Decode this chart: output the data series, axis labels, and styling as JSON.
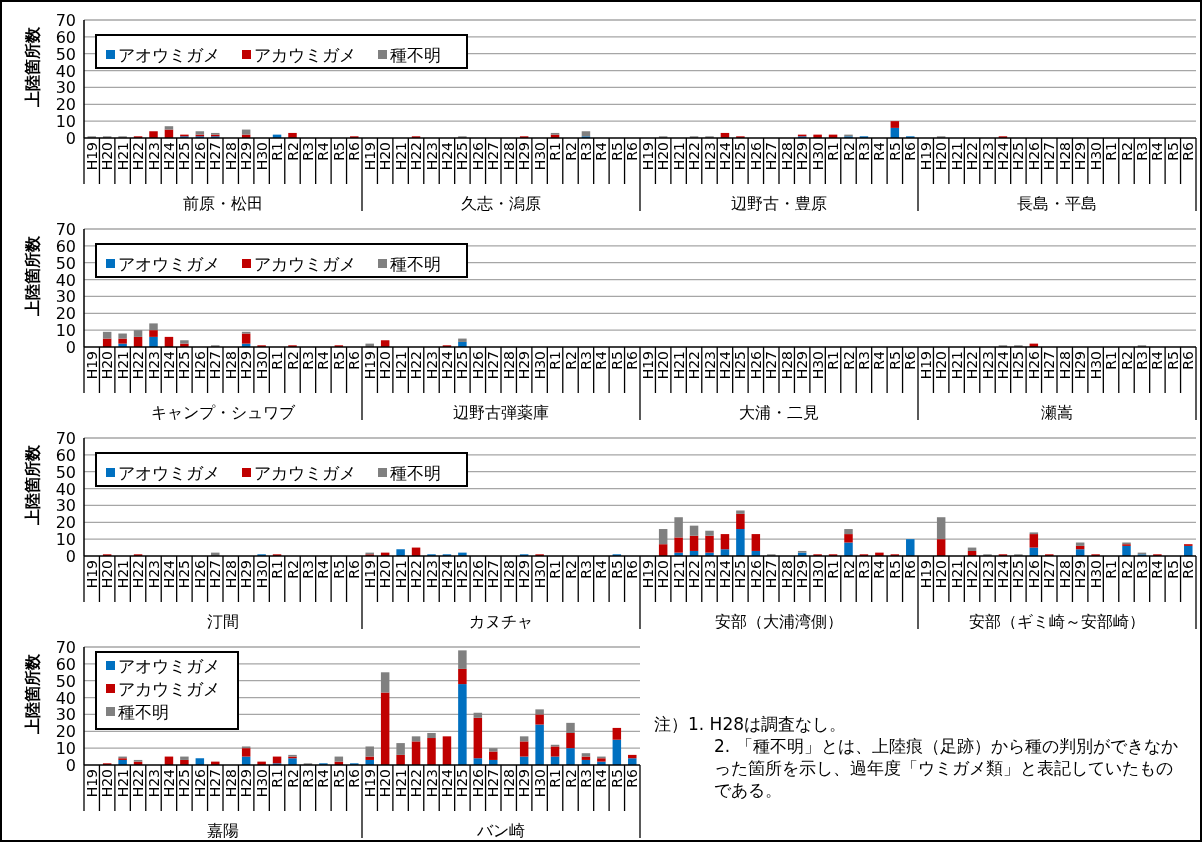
{
  "chart_data": [
    {
      "type": "bar",
      "stacked": true,
      "ylabel": "上陸箇所数",
      "ylim": [
        0,
        70
      ],
      "yticks": [
        0,
        10,
        20,
        30,
        40,
        50,
        60,
        70
      ],
      "grid": "y",
      "legend": "top left",
      "categories": [
        "H19",
        "H20",
        "H21",
        "H22",
        "H23",
        "H24",
        "H25",
        "H26",
        "H27",
        "H28",
        "H29",
        "H30",
        "R1",
        "R2",
        "R3",
        "R4",
        "R5",
        "R6",
        "H19",
        "H20",
        "H21",
        "H22",
        "H23",
        "H24",
        "H25",
        "H26",
        "H27",
        "H28",
        "H29",
        "H30",
        "R1",
        "R2",
        "R3",
        "R4",
        "R5",
        "R6",
        "H19",
        "H20",
        "H21",
        "H22",
        "H23",
        "H24",
        "H25",
        "H26",
        "H27",
        "H28",
        "H29",
        "H30",
        "R1",
        "R2",
        "R3",
        "R4",
        "R5",
        "R6",
        "H19",
        "H20",
        "H21",
        "H22",
        "H23",
        "H24",
        "H25",
        "H26",
        "H27",
        "H28",
        "H29",
        "H30",
        "R1",
        "R2",
        "R3",
        "R4",
        "R5",
        "R6"
      ],
      "annotations": [
        "前原・松田",
        "久志・潟原",
        "辺野古・豊原",
        "長島・平島"
      ],
      "series": [
        {
          "name": "アオウミガメ",
          "color": "#0070c0",
          "values": [
            0,
            0,
            0,
            0,
            0,
            0,
            1,
            1,
            1,
            0,
            0,
            0,
            2,
            0,
            0,
            0,
            0,
            0,
            0,
            0,
            0,
            0,
            0,
            0,
            0,
            0,
            0,
            0,
            0,
            0,
            0,
            0,
            1,
            0,
            0,
            0,
            0,
            0,
            0,
            0,
            0,
            0,
            0,
            0,
            0,
            0,
            1,
            0,
            0,
            1,
            1,
            0,
            6,
            1,
            0,
            0,
            0,
            0,
            0,
            0,
            0,
            0,
            0,
            0,
            0,
            0,
            0,
            0,
            0,
            0,
            0,
            0
          ]
        },
        {
          "name": "アカウミガメ",
          "color": "#c00000",
          "values": [
            0,
            0,
            0,
            1,
            4,
            5,
            1,
            1,
            1,
            0,
            2,
            0,
            0,
            3,
            0,
            0,
            0,
            1,
            0,
            0,
            0,
            1,
            0,
            0,
            0,
            0,
            0,
            0,
            1,
            0,
            2,
            0,
            0,
            0,
            0,
            0,
            0,
            0,
            0,
            0,
            0,
            3,
            1,
            0,
            0,
            0,
            1,
            2,
            2,
            0,
            0,
            0,
            4,
            0,
            0,
            0,
            0,
            0,
            0,
            1,
            0,
            0,
            0,
            0,
            0,
            0,
            0,
            0,
            0,
            0,
            0,
            0
          ]
        },
        {
          "name": "種不明",
          "color": "#808080",
          "values": [
            1,
            1,
            1,
            0,
            0,
            2,
            0,
            2,
            1,
            0,
            3,
            0,
            0,
            0,
            0,
            0,
            0,
            0,
            0,
            0,
            0,
            0,
            0,
            0,
            1,
            0,
            0,
            0,
            0,
            0,
            1,
            0,
            3,
            0,
            0,
            0,
            0,
            1,
            0,
            1,
            1,
            0,
            0,
            0,
            0,
            0,
            0,
            0,
            0,
            1,
            0,
            0,
            0,
            0,
            0,
            1,
            0,
            0,
            0,
            0,
            0,
            0,
            0,
            0,
            0,
            0,
            0,
            0,
            0,
            0,
            0,
            0
          ]
        }
      ]
    },
    {
      "type": "bar",
      "stacked": true,
      "ylabel": "上陸箇所数",
      "ylim": [
        0,
        70
      ],
      "yticks": [
        0,
        10,
        20,
        30,
        40,
        50,
        60,
        70
      ],
      "grid": "y",
      "legend": "top left",
      "categories": [
        "H19",
        "H20",
        "H21",
        "H22",
        "H23",
        "H24",
        "H25",
        "H26",
        "H27",
        "H28",
        "H29",
        "H30",
        "R1",
        "R2",
        "R3",
        "R4",
        "R5",
        "R6",
        "H19",
        "H20",
        "H21",
        "H22",
        "H23",
        "H24",
        "H25",
        "H26",
        "H27",
        "H28",
        "H29",
        "H30",
        "R1",
        "R2",
        "R3",
        "R4",
        "R5",
        "R6",
        "H19",
        "H20",
        "H21",
        "H22",
        "H23",
        "H24",
        "H25",
        "H26",
        "H27",
        "H28",
        "H29",
        "H30",
        "R1",
        "R2",
        "R3",
        "R4",
        "R5",
        "R6",
        "H19",
        "H20",
        "H21",
        "H22",
        "H23",
        "H24",
        "H25",
        "H26",
        "H27",
        "H28",
        "H29",
        "H30",
        "R1",
        "R2",
        "R3",
        "R4",
        "R5",
        "R6"
      ],
      "annotations": [
        "キャンプ・シュワブ",
        "辺野古弾薬庫",
        "大浦・二見",
        "瀬嵩"
      ],
      "series": [
        {
          "name": "アオウミガメ",
          "color": "#0070c0",
          "values": [
            0,
            0,
            2,
            0,
            6,
            0,
            0,
            0,
            0,
            0,
            2,
            0,
            0,
            0,
            0,
            0,
            0,
            0,
            0,
            0,
            0,
            0,
            0,
            0,
            3,
            0,
            0,
            0,
            0,
            0,
            0,
            0,
            0,
            0,
            0,
            0,
            0,
            0,
            0,
            0,
            0,
            0,
            0,
            0,
            0,
            0,
            0,
            0,
            0,
            0,
            0,
            0,
            0,
            0,
            0,
            0,
            0,
            0,
            0,
            0,
            0,
            0,
            0,
            0,
            0,
            0,
            0,
            0,
            0,
            0,
            0,
            0
          ]
        },
        {
          "name": "アカウミガメ",
          "color": "#c00000",
          "values": [
            0,
            5,
            3,
            6,
            4,
            6,
            2,
            0,
            0,
            0,
            6,
            1,
            0,
            1,
            0,
            0,
            1,
            0,
            0,
            4,
            0,
            0,
            0,
            1,
            0,
            0,
            0,
            0,
            0,
            0,
            0,
            0,
            0,
            0,
            0,
            0,
            0,
            0,
            0,
            0,
            0,
            0,
            0,
            0,
            0,
            0,
            0,
            0,
            0,
            0,
            0,
            0,
            0,
            0,
            0,
            0,
            0,
            0,
            0,
            0,
            0,
            2,
            0,
            0,
            0,
            0,
            0,
            0,
            0,
            0,
            0,
            0
          ]
        },
        {
          "name": "種不明",
          "color": "#808080",
          "values": [
            0,
            4,
            3,
            4,
            4,
            0,
            2,
            0,
            1,
            0,
            1,
            0,
            0,
            0,
            0,
            0,
            0,
            0,
            2,
            0,
            0,
            0,
            0,
            0,
            2,
            0,
            0,
            0,
            0,
            0,
            0,
            0,
            0,
            0,
            0,
            0,
            0,
            0,
            0,
            0,
            0,
            0,
            0,
            0,
            0,
            0,
            0,
            0,
            0,
            0,
            0,
            0,
            0,
            0,
            0,
            0,
            0,
            0,
            0,
            1,
            1,
            0,
            0,
            0,
            0,
            0,
            0,
            0,
            1,
            0,
            0,
            0
          ]
        }
      ]
    },
    {
      "type": "bar",
      "stacked": true,
      "ylabel": "上陸箇所数",
      "ylim": [
        0,
        70
      ],
      "yticks": [
        0,
        10,
        20,
        30,
        40,
        50,
        60,
        70
      ],
      "grid": "y",
      "legend": "top left",
      "categories": [
        "H19",
        "H20",
        "H21",
        "H22",
        "H23",
        "H24",
        "H25",
        "H26",
        "H27",
        "H28",
        "H29",
        "H30",
        "R1",
        "R2",
        "R3",
        "R4",
        "R5",
        "R6",
        "H19",
        "H20",
        "H21",
        "H22",
        "H23",
        "H24",
        "H25",
        "H26",
        "H27",
        "H28",
        "H29",
        "H30",
        "R1",
        "R2",
        "R3",
        "R4",
        "R5",
        "R6",
        "H19",
        "H20",
        "H21",
        "H22",
        "H23",
        "H24",
        "H25",
        "H26",
        "H27",
        "H28",
        "H29",
        "H30",
        "R1",
        "R2",
        "R3",
        "R4",
        "R5",
        "R6",
        "H19",
        "H20",
        "H21",
        "H22",
        "H23",
        "H24",
        "H25",
        "H26",
        "H27",
        "H28",
        "H29",
        "H30",
        "R1",
        "R2",
        "R3",
        "R4",
        "R5",
        "R6"
      ],
      "annotations": [
        "汀間",
        "カヌチャ",
        "安部（大浦湾側）",
        "安部（ギミ崎～安部崎）"
      ],
      "series": [
        {
          "name": "アオウミガメ",
          "color": "#0070c0",
          "values": [
            0,
            0,
            0,
            0,
            0,
            0,
            0,
            0,
            0,
            0,
            0,
            1,
            0,
            0,
            0,
            0,
            0,
            0,
            0,
            0,
            4,
            0,
            1,
            1,
            2,
            0,
            0,
            0,
            1,
            0,
            0,
            0,
            0,
            0,
            1,
            0,
            0,
            0,
            2,
            3,
            2,
            4,
            16,
            3,
            0,
            0,
            2,
            0,
            0,
            8,
            0,
            0,
            0,
            10,
            0,
            0,
            0,
            0,
            0,
            0,
            0,
            5,
            0,
            0,
            4,
            0,
            0,
            6,
            1,
            0,
            0,
            6
          ]
        },
        {
          "name": "アカウミガメ",
          "color": "#c00000",
          "values": [
            0,
            1,
            0,
            1,
            0,
            0,
            0,
            0,
            0,
            0,
            0,
            0,
            1,
            0,
            0,
            0,
            0,
            0,
            1,
            2,
            0,
            5,
            0,
            0,
            0,
            0,
            0,
            0,
            0,
            1,
            0,
            0,
            0,
            0,
            0,
            0,
            0,
            7,
            9,
            9,
            10,
            9,
            9,
            10,
            0,
            0,
            0,
            1,
            1,
            5,
            1,
            2,
            1,
            0,
            0,
            10,
            0,
            3,
            0,
            1,
            0,
            8,
            1,
            0,
            2,
            1,
            0,
            1,
            0,
            1,
            0,
            1
          ]
        },
        {
          "name": "種不明",
          "color": "#808080",
          "values": [
            0,
            0,
            0,
            0,
            0,
            0,
            0,
            0,
            2,
            0,
            0,
            0,
            0,
            0,
            0,
            0,
            0,
            0,
            1,
            0,
            0,
            0,
            0,
            0,
            0,
            0,
            0,
            0,
            0,
            0,
            0,
            0,
            0,
            0,
            0,
            0,
            0,
            9,
            12,
            6,
            3,
            0,
            2,
            0,
            1,
            0,
            1,
            0,
            0,
            3,
            0,
            0,
            0,
            0,
            0,
            13,
            0,
            2,
            1,
            0,
            1,
            1,
            0,
            0,
            2,
            0,
            0,
            1,
            1,
            0,
            0,
            0
          ]
        }
      ]
    },
    {
      "type": "bar",
      "stacked": true,
      "ylabel": "上陸箇所数",
      "ylim": [
        0,
        70
      ],
      "yticks": [
        0,
        10,
        20,
        30,
        40,
        50,
        60,
        70
      ],
      "grid": "y",
      "legend": "top left",
      "categories": [
        "H19",
        "H20",
        "H21",
        "H22",
        "H23",
        "H24",
        "H25",
        "H26",
        "H27",
        "H28",
        "H29",
        "H30",
        "R1",
        "R2",
        "R3",
        "R4",
        "R5",
        "R6",
        "H19",
        "H20",
        "H21",
        "H22",
        "H23",
        "H24",
        "H25",
        "H26",
        "H27",
        "H28",
        "H29",
        "H30",
        "R1",
        "R2",
        "R3",
        "R4",
        "R5",
        "R6"
      ],
      "annotations": [
        "嘉陽",
        "バン崎"
      ],
      "series": [
        {
          "name": "アオウミガメ",
          "color": "#0070c0",
          "values": [
            0,
            0,
            3,
            0,
            0,
            0,
            0,
            4,
            0,
            0,
            5,
            0,
            1,
            4,
            0,
            1,
            0,
            1,
            3,
            0,
            0,
            0,
            0,
            0,
            48,
            4,
            3,
            0,
            5,
            24,
            5,
            10,
            3,
            2,
            15,
            4
          ]
        },
        {
          "name": "アカウミガメ",
          "color": "#c00000",
          "values": [
            0,
            1,
            1,
            2,
            0,
            5,
            3,
            0,
            2,
            0,
            5,
            2,
            4,
            1,
            0,
            0,
            2,
            0,
            2,
            43,
            6,
            14,
            16,
            17,
            9,
            24,
            5,
            0,
            9,
            6,
            6,
            9,
            2,
            2,
            7,
            2
          ]
        },
        {
          "name": "種不明",
          "color": "#808080",
          "values": [
            0,
            0,
            1,
            1,
            0,
            0,
            2,
            0,
            0,
            0,
            1,
            0,
            0,
            1,
            1,
            0,
            3,
            0,
            6,
            12,
            7,
            3,
            3,
            0,
            11,
            3,
            2,
            0,
            3,
            3,
            1,
            6,
            2,
            1,
            0,
            0
          ]
        }
      ]
    },
    {
      "type": "other",
      "annotations": [
        "注）1. H28は調査なし。",
        "2. 「種不明」とは、上陸痕（足跡）から種の判別ができなかった箇所を示し、過年度「ウミガメ類」と表記していたものである。"
      ]
    }
  ]
}
